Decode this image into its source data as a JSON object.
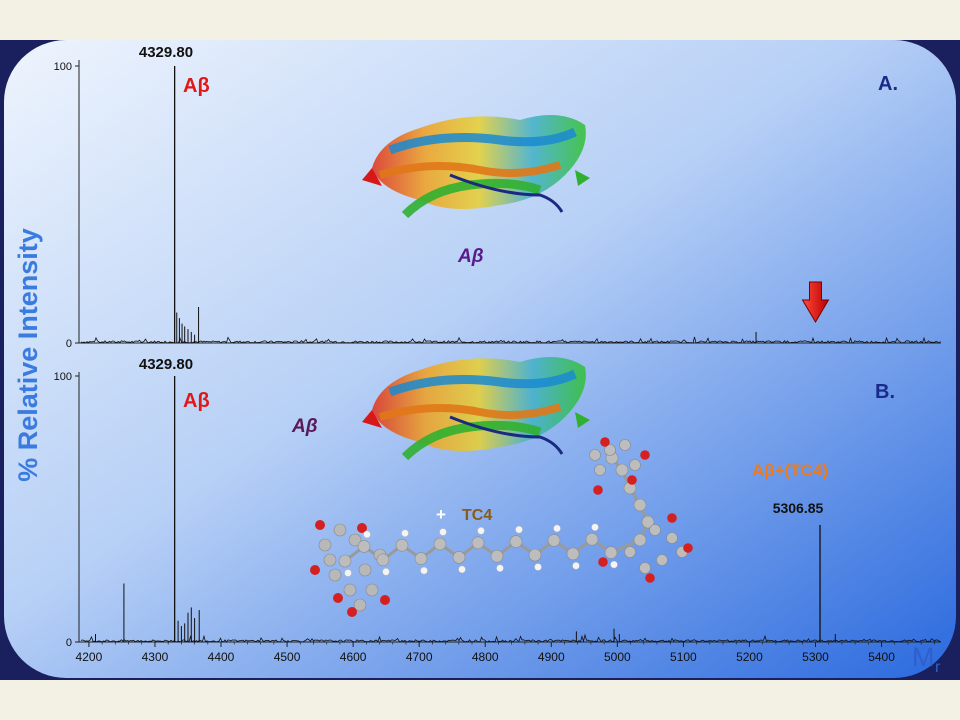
{
  "slide": {
    "colors": {
      "outer_frame": "#1a1f5e",
      "panel_light": "#dbe8fb",
      "panel_dark": "#2f6fe0",
      "axis_title": "#3a7be0",
      "peak_label_red": "#e11818",
      "ab_purple": "#5a1a8a",
      "complex_orange": "#f07a1a",
      "tc4_brown": "#8a5a1a",
      "panel_letter": "#1a2a8a",
      "arrow_red": "#e01010",
      "spectrum": "#111111"
    },
    "y_axis_title": "% Relative Intensity",
    "x_axis_title_main": "M",
    "x_axis_title_sub": "r"
  },
  "chart_data": [
    {
      "type": "line",
      "panel_label": "A.",
      "xlim": [
        4185,
        5490
      ],
      "ylim": [
        0,
        100
      ],
      "yticks": [
        0,
        100
      ],
      "ytick_labels": [
        "0",
        "100"
      ],
      "annotations": {
        "peak_mass": "4329.80",
        "peak_species": "Aβ",
        "structure_label": "Aβ",
        "arrow_at_x": 5300
      },
      "peaks": [
        {
          "x": 4329.8,
          "y": 100
        },
        {
          "x": 4333,
          "y": 11
        },
        {
          "x": 4337,
          "y": 9
        },
        {
          "x": 4341,
          "y": 7
        },
        {
          "x": 4345,
          "y": 6
        },
        {
          "x": 4350,
          "y": 5
        },
        {
          "x": 4355,
          "y": 4
        },
        {
          "x": 4360,
          "y": 3
        },
        {
          "x": 4366,
          "y": 13
        },
        {
          "x": 5210,
          "y": 4
        }
      ]
    },
    {
      "type": "line",
      "panel_label": "B.",
      "xlim": [
        4185,
        5490
      ],
      "ylim": [
        0,
        100
      ],
      "yticks": [
        0,
        100
      ],
      "ytick_labels": [
        "0",
        "100"
      ],
      "xticks": [
        4200,
        4300,
        4400,
        4500,
        4600,
        4700,
        4800,
        4900,
        5000,
        5100,
        5200,
        5300,
        5400
      ],
      "xtick_labels": [
        "4200",
        "4300",
        "4400",
        "4500",
        "4600",
        "4700",
        "4800",
        "4900",
        "5000",
        "5100",
        "5200",
        "5300",
        "5400"
      ],
      "annotations": {
        "peak_mass": "4329.80",
        "peak_species": "Aβ",
        "structure_label": "Aβ",
        "tc4_plus": "+",
        "tc4_label": "TC4",
        "complex_label": "Aβ+(TC4)",
        "complex_mass": "5306.85"
      },
      "peaks": [
        {
          "x": 4210,
          "y": 3
        },
        {
          "x": 4253,
          "y": 22
        },
        {
          "x": 4329.8,
          "y": 100
        },
        {
          "x": 4335,
          "y": 8
        },
        {
          "x": 4340,
          "y": 6
        },
        {
          "x": 4345,
          "y": 7
        },
        {
          "x": 4350,
          "y": 11
        },
        {
          "x": 4355,
          "y": 13
        },
        {
          "x": 4360,
          "y": 9
        },
        {
          "x": 4367,
          "y": 12
        },
        {
          "x": 4938,
          "y": 4
        },
        {
          "x": 4995,
          "y": 5
        },
        {
          "x": 5003,
          "y": 3
        },
        {
          "x": 5306.85,
          "y": 44
        },
        {
          "x": 5330,
          "y": 3
        }
      ]
    }
  ]
}
